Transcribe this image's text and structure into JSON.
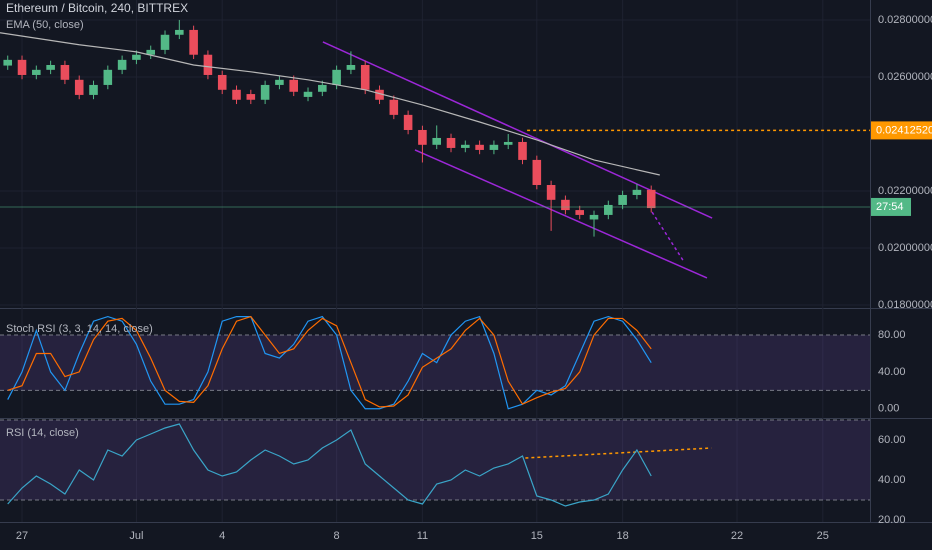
{
  "chart_data": [
    {
      "type": "candlestick",
      "title": "Ethereum / Bitcoin, 240, BITTREX",
      "indicator": "EMA (50, close)",
      "x": [
        -0.5,
        0,
        0.5,
        1,
        1.5,
        2,
        2.5,
        3,
        3.5,
        4,
        4.5,
        5,
        5.5,
        6,
        6.5,
        7,
        7.5,
        8,
        8.5,
        9,
        9.5,
        10,
        10.5,
        11,
        11.5,
        12,
        12.5,
        13,
        13.5,
        14,
        14.5,
        15,
        15.5,
        16,
        16.5,
        17,
        17.5,
        18,
        18.5,
        19,
        19.5,
        20,
        20.5,
        21,
        21.5,
        22
      ],
      "open": [
        0.0264,
        0.0266,
        0.02607,
        0.02625,
        0.02642,
        0.0259,
        0.02537,
        0.02572,
        0.02625,
        0.0266,
        0.02678,
        0.02695,
        0.02748,
        0.02765,
        0.02678,
        0.02607,
        0.02555,
        0.0254,
        0.0252,
        0.02572,
        0.0259,
        0.0253,
        0.02548,
        0.02572,
        0.02625,
        0.02642,
        0.02555,
        0.0252,
        0.02467,
        0.02414,
        0.02362,
        0.02386,
        0.02351,
        0.02362,
        0.02344,
        0.02362,
        0.02372,
        0.02309,
        0.02221,
        0.02169,
        0.02133,
        0.021,
        0.02116,
        0.02151,
        0.02186,
        0.02204
      ],
      "high": [
        0.02675,
        0.02675,
        0.0264,
        0.02657,
        0.02657,
        0.02605,
        0.02587,
        0.0264,
        0.02675,
        0.02693,
        0.0271,
        0.02763,
        0.028,
        0.0278,
        0.02693,
        0.02622,
        0.0257,
        0.02555,
        0.02587,
        0.02605,
        0.02605,
        0.02563,
        0.02587,
        0.0264,
        0.0269,
        0.02657,
        0.0257,
        0.02535,
        0.02482,
        0.02429,
        0.0243,
        0.02401,
        0.02377,
        0.02377,
        0.02377,
        0.024,
        0.02387,
        0.02324,
        0.02236,
        0.02184,
        0.02148,
        0.02131,
        0.02166,
        0.02201,
        0.02225,
        0.02219
      ],
      "low": [
        0.02625,
        0.02592,
        0.02592,
        0.0261,
        0.02575,
        0.02522,
        0.02522,
        0.02557,
        0.0261,
        0.02645,
        0.02663,
        0.0268,
        0.02733,
        0.02663,
        0.02592,
        0.0254,
        0.02505,
        0.02505,
        0.02505,
        0.02557,
        0.02533,
        0.02515,
        0.02533,
        0.02557,
        0.0261,
        0.0254,
        0.02505,
        0.02452,
        0.02399,
        0.023,
        0.02347,
        0.02336,
        0.02336,
        0.02329,
        0.02329,
        0.02347,
        0.02294,
        0.02206,
        0.0206,
        0.02118,
        0.02101,
        0.0204,
        0.02101,
        0.02136,
        0.02171,
        0.02125
      ],
      "close": [
        0.0266,
        0.02607,
        0.02625,
        0.02642,
        0.0259,
        0.02537,
        0.02572,
        0.02625,
        0.0266,
        0.02678,
        0.02695,
        0.02748,
        0.02765,
        0.02678,
        0.02607,
        0.02555,
        0.0252,
        0.0252,
        0.02572,
        0.0259,
        0.02548,
        0.02548,
        0.02572,
        0.02625,
        0.02642,
        0.02555,
        0.0252,
        0.02467,
        0.02414,
        0.02362,
        0.02386,
        0.02351,
        0.02362,
        0.02344,
        0.02362,
        0.02372,
        0.02309,
        0.02221,
        0.02169,
        0.02133,
        0.02116,
        0.02116,
        0.02151,
        0.02186,
        0.02204,
        0.0214
      ],
      "up_color": "#53b987",
      "down_color": "#eb4d5c",
      "ema": {
        "color": "#b7b7b7",
        "x": [
          -0.77,
          2,
          4,
          6,
          8,
          10,
          12,
          14,
          16,
          18,
          20,
          22.3
        ],
        "values": [
          0.02755,
          0.02713,
          0.02688,
          0.02642,
          0.02618,
          0.0259,
          0.02555,
          0.02502,
          0.02442,
          0.02379,
          0.02309,
          0.02256
        ]
      },
      "annotations": [
        {
          "color": "#9c27d8",
          "dash": false,
          "x": [
            10.52,
            24.13
          ],
          "y": [
            0.02723,
            0.02105
          ]
        },
        {
          "color": "#9c27d8",
          "dash": false,
          "x": [
            13.74,
            23.95
          ],
          "y": [
            0.02344,
            0.01895
          ]
        },
        {
          "color": "#ff9800",
          "dash": true,
          "x": [
            17.66,
            29.65
          ],
          "y": [
            0.0241252,
            0.0241252
          ]
        },
        {
          "color": "#9c27d8",
          "dash": true,
          "x": [
            22.03,
            23.15
          ],
          "y": [
            0.02126,
            0.01951
          ]
        }
      ],
      "price_labels": [
        {
          "value": 0.0241252,
          "label": "0.02412520",
          "color": "#ff9800"
        },
        {
          "value": 0.02144,
          "label": "27:54",
          "color": "#53b987"
        }
      ],
      "xlim": [
        -0.77,
        29.65
      ],
      "xticks": [
        {
          "value": 0,
          "label": "27"
        },
        {
          "value": 4,
          "label": "Jul"
        },
        {
          "value": 7,
          "label": "4"
        },
        {
          "value": 11,
          "label": "8"
        },
        {
          "value": 14,
          "label": "11"
        },
        {
          "value": 18,
          "label": "15"
        },
        {
          "value": 21,
          "label": "18"
        },
        {
          "value": 25,
          "label": "22"
        },
        {
          "value": 28,
          "label": "25"
        }
      ],
      "ylim": [
        0.018,
        0.0287
      ],
      "yticks": [
        {
          "value": 0.018,
          "label": "0.01800000"
        },
        {
          "value": 0.02,
          "label": "0.02000000"
        },
        {
          "value": 0.022,
          "label": "0.02200000"
        },
        {
          "value": 0.026,
          "label": "0.02600000"
        },
        {
          "value": 0.028,
          "label": "0.02800000"
        }
      ],
      "grid": true
    },
    {
      "type": "line",
      "title": "Stoch RSI (3, 3, 14, 14, close)",
      "series": [
        {
          "color": "#2196f3",
          "values": [
            10,
            40,
            85,
            40,
            20,
            60,
            95,
            100,
            95,
            70,
            30,
            5,
            5,
            10,
            40,
            95,
            100,
            100,
            60,
            55,
            70,
            95,
            100,
            80,
            20,
            0,
            0,
            5,
            30,
            60,
            50,
            80,
            95,
            100,
            60,
            0,
            5,
            20,
            15,
            25,
            60,
            95,
            100,
            95,
            75,
            50
          ]
        },
        {
          "color": "#ff6d00",
          "values": [
            20,
            25,
            60,
            60,
            35,
            40,
            75,
            95,
            98,
            85,
            55,
            20,
            8,
            7,
            25,
            65,
            95,
            100,
            80,
            60,
            65,
            85,
            98,
            90,
            50,
            10,
            2,
            3,
            15,
            45,
            55,
            65,
            85,
            98,
            80,
            30,
            5,
            12,
            18,
            22,
            40,
            80,
            98,
            98,
            85,
            65
          ]
        }
      ],
      "band": [
        20,
        80
      ],
      "band_color": "#7e57c2",
      "ylim": [
        -10,
        105
      ],
      "yticks": [
        {
          "value": 0,
          "label": "0.00"
        },
        {
          "value": 40,
          "label": "40.00"
        },
        {
          "value": 80,
          "label": "80.00"
        }
      ]
    },
    {
      "type": "line",
      "title": "RSI (14, close)",
      "series": [
        {
          "color": "#3aa5c8",
          "values": [
            28,
            36,
            42,
            38,
            33,
            45,
            40,
            55,
            52,
            60,
            63,
            66,
            68,
            55,
            45,
            42,
            44,
            50,
            55,
            52,
            48,
            50,
            56,
            60,
            65,
            48,
            42,
            36,
            30,
            28,
            38,
            40,
            45,
            42,
            46,
            48,
            52,
            32,
            30,
            27,
            29,
            30,
            33,
            45,
            55,
            42
          ]
        }
      ],
      "band": [
        30,
        70
      ],
      "band_color": "#7e57c2",
      "annotations": [
        {
          "color": "#ff9800",
          "dash": true,
          "x": [
            17.6,
            24.1
          ],
          "y": [
            51,
            56
          ]
        }
      ],
      "ylim": [
        19,
        71
      ],
      "yticks": [
        {
          "value": 20,
          "label": "20.00"
        },
        {
          "value": 40,
          "label": "40.00"
        },
        {
          "value": 60,
          "label": "60.00"
        }
      ]
    }
  ]
}
